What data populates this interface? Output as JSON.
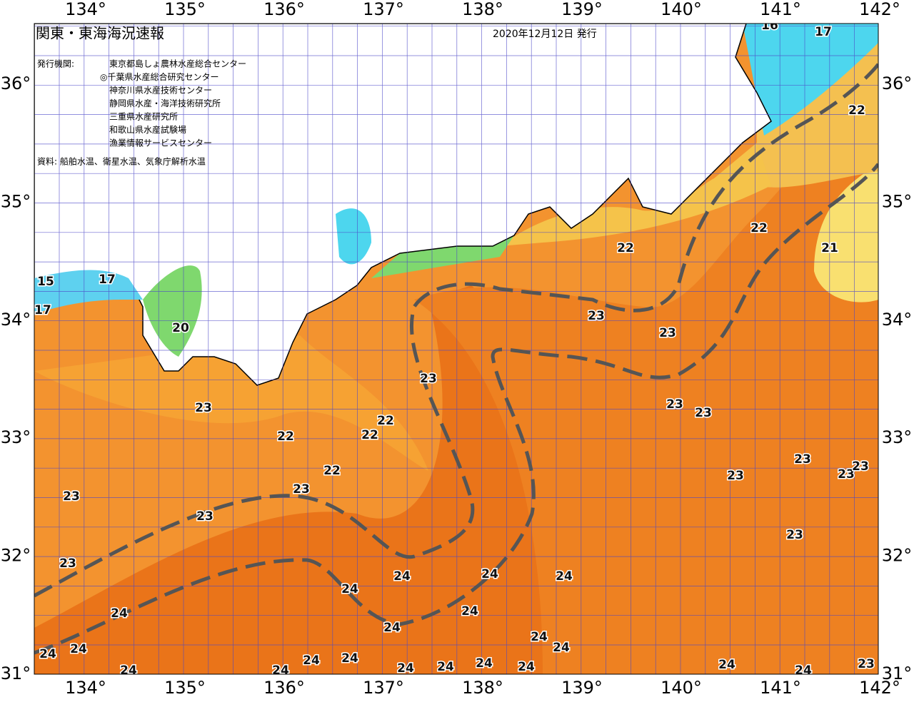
{
  "header": {
    "title": "関東・東海海況速報",
    "date": "2020年12月12日 発行",
    "issuer_label": "発行機関:",
    "issuers": [
      "東京都島しょ農林水産総合センター",
      "◎千葉県水産総合研究センター",
      "神奈川県水産技術センター",
      "静岡県水産・海洋技術研究所",
      "三重県水産研究所",
      "和歌山県水産試験場",
      "漁業情報サービスセンター"
    ],
    "source": "資料: 船舶水温、衛星水温、気象庁解析水温"
  },
  "axes": {
    "lon_ticks": [
      "134°",
      "135°",
      "136°",
      "137°",
      "138°",
      "139°",
      "140°",
      "141°",
      "142°"
    ],
    "lat_ticks": [
      "36°",
      "35°",
      "34°",
      "33°",
      "32°",
      "31°"
    ]
  },
  "contour_labels": [
    "23",
    "22",
    "22",
    "22",
    "22",
    "23",
    "23",
    "23",
    "23",
    "24",
    "24",
    "24",
    "24",
    "24",
    "24",
    "24",
    "24",
    "24",
    "24",
    "24",
    "24",
    "24",
    "24",
    "24",
    "24",
    "24",
    "24",
    "24",
    "24",
    "24",
    "23",
    "23",
    "23",
    "23",
    "23",
    "23",
    "22",
    "22",
    "21",
    "22",
    "23",
    "23",
    "23",
    "23",
    "23",
    "20",
    "17",
    "15",
    "17",
    "16",
    "17"
  ]
}
